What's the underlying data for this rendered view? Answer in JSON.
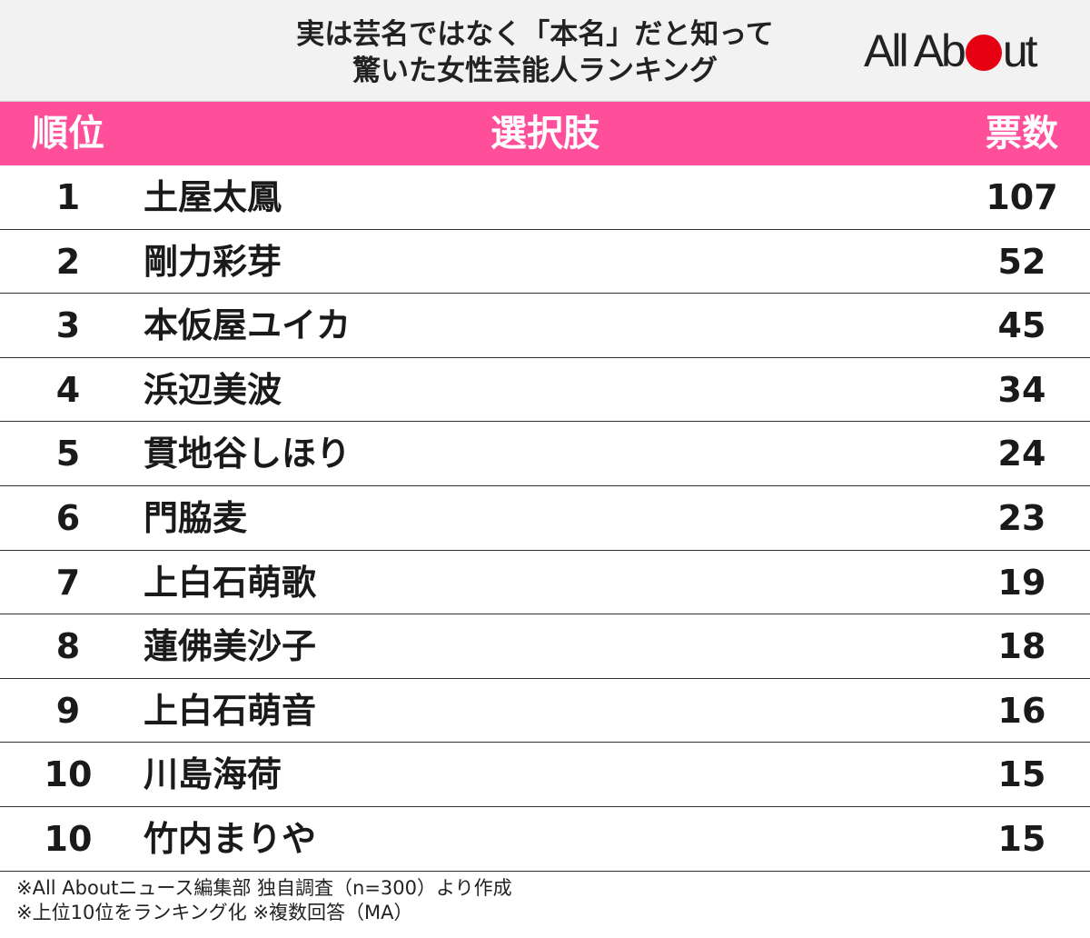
{
  "header": {
    "title_line1": "実は芸名ではなく「本名」だと知って",
    "title_line2": "驚いた女性芸能人ランキング",
    "logo_left": "All Ab",
    "logo_right": "ut",
    "logo_dot_color": "#e60012"
  },
  "colors": {
    "header_bar": "#ff4f9a"
  },
  "chart_data": {
    "type": "table",
    "title": "実は芸名ではなく「本名」だと知って驚いた女性芸能人ランキング",
    "columns": [
      "順位",
      "選択肢",
      "票数"
    ],
    "rows": [
      {
        "rank": "1",
        "name": "土屋太鳳",
        "votes": 107
      },
      {
        "rank": "2",
        "name": "剛力彩芽",
        "votes": 52
      },
      {
        "rank": "3",
        "name": "本仮屋ユイカ",
        "votes": 45
      },
      {
        "rank": "4",
        "name": "浜辺美波",
        "votes": 34
      },
      {
        "rank": "5",
        "name": "貫地谷しほり",
        "votes": 24
      },
      {
        "rank": "6",
        "name": "門脇麦",
        "votes": 23
      },
      {
        "rank": "7",
        "name": "上白石萌歌",
        "votes": 19
      },
      {
        "rank": "8",
        "name": "蓮佛美沙子",
        "votes": 18
      },
      {
        "rank": "9",
        "name": "上白石萌音",
        "votes": 16
      },
      {
        "rank": "10",
        "name": "川島海荷",
        "votes": 15
      },
      {
        "rank": "10",
        "name": "竹内まりや",
        "votes": 15
      }
    ]
  },
  "notes": {
    "line1": "※All Aboutニュース編集部 独自調査（n=300）より作成",
    "line2": "※上位10位をランキング化 ※複数回答（MA）"
  }
}
